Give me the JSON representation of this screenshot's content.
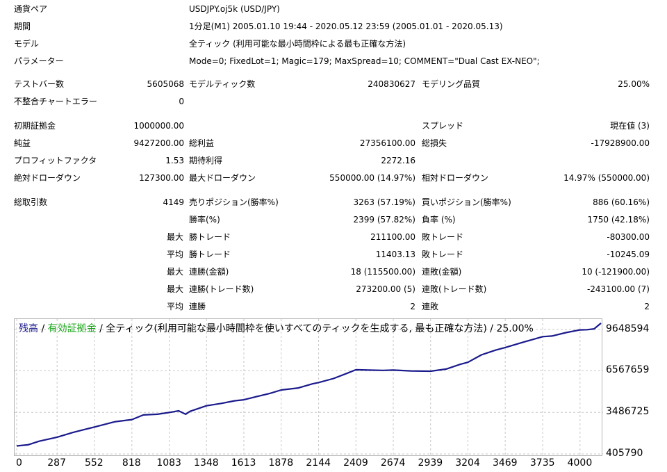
{
  "header": {
    "symbol_label": "通貨ペア",
    "symbol_value": "USDJPY.oj5k (USD/JPY)",
    "period_label": "期間",
    "period_value": "1分足(M1) 2005.01.10 19:44 - 2020.05.12 23:59 (2005.01.01 - 2020.05.13)",
    "model_label": "モデル",
    "model_value": "全ティック (利用可能な最小時間枠による最も正確な方法)",
    "params_label": "パラメーター",
    "params_value": "Mode=0; FixedLot=1; Magic=179; MaxSpread=10; COMMENT=\"Dual Cast EX-NEO\";"
  },
  "stats": {
    "bars_label": "テストバー数",
    "bars_value": "5605068",
    "ticks_label": "モデルティック数",
    "ticks_value": "240830627",
    "quality_label": "モデリング品質",
    "quality_value": "25.00%",
    "mismatch_label": "不整合チャートエラー",
    "mismatch_value": "0",
    "deposit_label": "初期証拠金",
    "deposit_value": "1000000.00",
    "spread_label": "スプレッド",
    "spread_value": "現在値 (3)",
    "net_label": "純益",
    "net_value": "9427200.00",
    "gross_profit_label": "総利益",
    "gross_profit_value": "27356100.00",
    "gross_loss_label": "総損失",
    "gross_loss_value": "-17928900.00",
    "pf_label": "プロフィットファクタ",
    "pf_value": "1.53",
    "expected_label": "期待利得",
    "expected_value": "2272.16",
    "abs_dd_label": "絶対ドローダウン",
    "abs_dd_value": "127300.00",
    "max_dd_label": "最大ドローダウン",
    "max_dd_value": "550000.00 (14.97%)",
    "rel_dd_label": "相対ドローダウン",
    "rel_dd_value": "14.97% (550000.00)",
    "total_trades_label": "総取引数",
    "total_trades_value": "4149",
    "short_label": "売りポジション(勝率%)",
    "short_value": "3263 (57.19%)",
    "long_label": "買いポジション(勝率%)",
    "long_value": "886 (60.16%)",
    "win_label": "勝率(%)",
    "win_value": "2399 (57.82%)",
    "loss_label": "負率 (%)",
    "loss_value": "1750 (42.18%)",
    "max_label_1": "最大",
    "largest_win_label": "勝トレード",
    "largest_win_value": "211100.00",
    "largest_loss_label": "敗トレード",
    "largest_loss_value": "-80300.00",
    "avg_label_1": "平均",
    "avg_win_label": "勝トレード",
    "avg_win_value": "11403.13",
    "avg_loss_label": "敗トレード",
    "avg_loss_value": "-10245.09",
    "max_label_2": "最大",
    "consec_wins_money_label": "連勝(金額)",
    "consec_wins_money_value": "18 (115500.00)",
    "consec_losses_money_label": "連敗(金額)",
    "consec_losses_money_value": "10 (-121900.00)",
    "max_label_3": "最大",
    "consec_wins_count_label": "連勝(トレード数)",
    "consec_wins_count_value": "273200.00 (5)",
    "consec_losses_count_label": "連敗(トレード数)",
    "consec_losses_count_value": "-243100.00 (7)",
    "avg_label_2": "平均",
    "avg_consec_wins_label": "連勝",
    "avg_consec_wins_value": "2",
    "avg_consec_losses_label": "連敗",
    "avg_consec_losses_value": "2"
  },
  "chart_data": {
    "type": "line",
    "legend_balance": "残高",
    "legend_sep1": " / ",
    "legend_equity": "有効証拠金",
    "legend_rest": " / 全ティック(利用可能な最小時間枠を使いすべてのティックを生成する, 最も正確な方法) / 25.00%",
    "colors": {
      "balance": "#1a1a8c",
      "equity": "#1aa51a",
      "line": "#1a1a8c",
      "grid": "#c8c8c8"
    },
    "ylim": [
      405790,
      10200000
    ],
    "xlim": [
      0,
      4149
    ],
    "ytick_values": [
      9648594,
      6567659,
      3486725,
      405790
    ],
    "ytick_labels": [
      "9648594",
      "6567659",
      "3486725",
      "405790"
    ],
    "xtick_values": [
      0,
      287,
      552,
      818,
      1083,
      1348,
      1613,
      1878,
      2144,
      2409,
      2674,
      2939,
      3204,
      3469,
      3735,
      4000
    ],
    "xtick_labels": [
      "0",
      "287",
      "552",
      "818",
      "1083",
      "1348",
      "1613",
      "1878",
      "2144",
      "2409",
      "2674",
      "2939",
      "3204",
      "3469",
      "3735",
      "4000"
    ],
    "series": [
      {
        "x": [
          0,
          80,
          160,
          287,
          400,
          552,
          700,
          818,
          900,
          1000,
          1083,
          1150,
          1200,
          1230,
          1348,
          1450,
          1550,
          1613,
          1700,
          1800,
          1878,
          2000,
          2100,
          2144,
          2250,
          2350,
          2409,
          2500,
          2600,
          2674,
          2800,
          2939,
          3050,
          3150,
          3204,
          3300,
          3400,
          3469,
          3600,
          3700,
          3735,
          3800,
          3900,
          4000,
          4050,
          4100,
          4149
        ],
        "y": [
          1000000,
          1080000,
          1350000,
          1650000,
          2000000,
          2400000,
          2800000,
          2950000,
          3300000,
          3350000,
          3480000,
          3600000,
          3350000,
          3560000,
          3980000,
          4150000,
          4350000,
          4420000,
          4650000,
          4900000,
          5150000,
          5300000,
          5600000,
          5700000,
          6000000,
          6400000,
          6650000,
          6620000,
          6600000,
          6620000,
          6560000,
          6540000,
          6700000,
          7050000,
          7200000,
          7750000,
          8100000,
          8300000,
          8700000,
          9000000,
          9100000,
          9150000,
          9400000,
          9600000,
          9620000,
          9680000,
          10100000
        ]
      }
    ]
  }
}
